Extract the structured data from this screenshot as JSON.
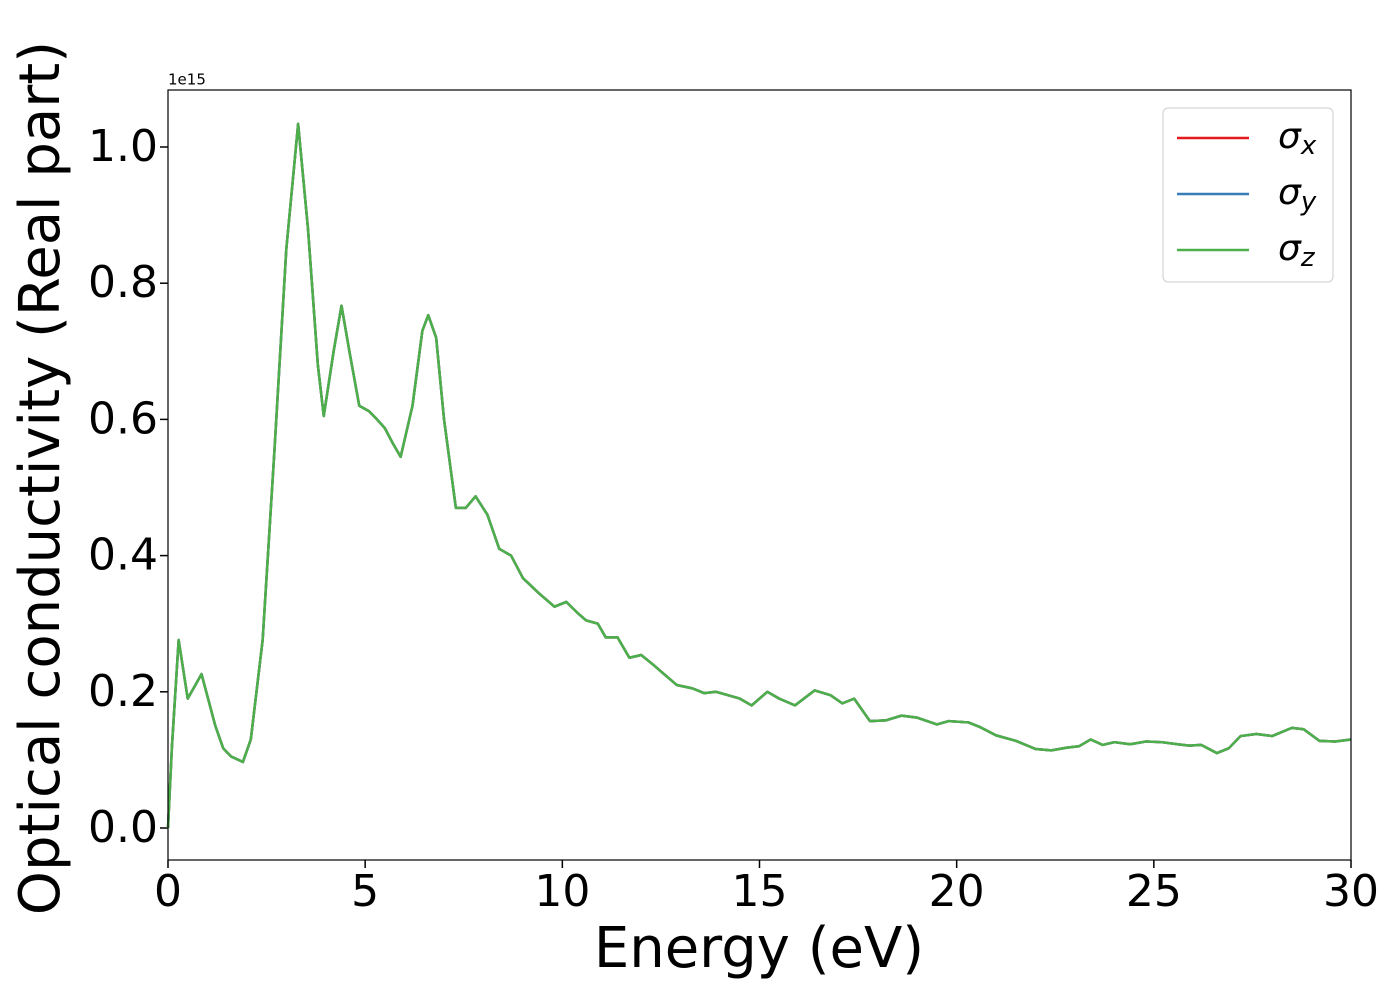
{
  "chart_data": {
    "type": "line",
    "xlabel": "Energy (eV)",
    "ylabel": "Optical conductivity (Real part)",
    "y_offset_label": "1e15",
    "xlim": [
      0,
      30
    ],
    "xticks": [
      0,
      5,
      10,
      15,
      20,
      25,
      30
    ],
    "ylim": [
      -0.047,
      1.0837
    ],
    "yticks": [
      {
        "value": 0,
        "label": "0.0"
      },
      0.2,
      0.4,
      0.6,
      0.8,
      {
        "value": 1,
        "label": "1.0"
      }
    ],
    "legend": "upper right",
    "x": [
      0,
      0.1,
      0.27,
      0.5,
      0.85,
      1.2,
      1.4,
      1.6,
      1.9,
      2.1,
      2.4,
      2.7,
      3.0,
      3.3,
      3.55,
      3.8,
      3.95,
      4.2,
      4.4,
      4.6,
      4.85,
      5.1,
      5.3,
      5.5,
      5.7,
      5.9,
      6.2,
      6.45,
      6.6,
      6.8,
      7.0,
      7.3,
      7.55,
      7.8,
      8.1,
      8.4,
      8.7,
      9.0,
      9.4,
      9.8,
      10.1,
      10.4,
      10.6,
      10.9,
      11.1,
      11.4,
      11.7,
      12.0,
      12.3,
      12.6,
      12.9,
      13.3,
      13.6,
      13.9,
      14.2,
      14.5,
      14.8,
      15.2,
      15.5,
      15.9,
      16.4,
      16.8,
      17.1,
      17.4,
      17.8,
      18.2,
      18.6,
      19.0,
      19.5,
      19.8,
      20.3,
      20.6,
      21.0,
      21.5,
      22.0,
      22.4,
      22.8,
      23.1,
      23.4,
      23.7,
      24.0,
      24.4,
      24.8,
      25.2,
      25.6,
      25.9,
      26.2,
      26.6,
      26.9,
      27.2,
      27.6,
      28.0,
      28.5,
      28.8,
      29.2,
      29.6,
      30.0
    ],
    "series": [
      {
        "name": "σx",
        "color": "#e41a1c",
        "values": [
          0,
          0.12,
          0.276,
          0.19,
          0.226,
          0.15,
          0.117,
          0.105,
          0.097,
          0.13,
          0.276,
          0.555,
          0.85,
          1.034,
          0.88,
          0.68,
          0.605,
          0.7,
          0.767,
          0.7,
          0.62,
          0.612,
          0.6,
          0.587,
          0.565,
          0.545,
          0.62,
          0.73,
          0.753,
          0.72,
          0.6,
          0.47,
          0.47,
          0.487,
          0.46,
          0.41,
          0.4,
          0.367,
          0.345,
          0.325,
          0.332,
          0.315,
          0.305,
          0.3,
          0.28,
          0.28,
          0.25,
          0.254,
          0.24,
          0.225,
          0.21,
          0.205,
          0.198,
          0.2,
          0.195,
          0.19,
          0.18,
          0.2,
          0.19,
          0.18,
          0.202,
          0.195,
          0.183,
          0.19,
          0.157,
          0.158,
          0.165,
          0.162,
          0.152,
          0.157,
          0.155,
          0.148,
          0.136,
          0.128,
          0.116,
          0.114,
          0.118,
          0.12,
          0.13,
          0.122,
          0.126,
          0.123,
          0.127,
          0.126,
          0.123,
          0.121,
          0.122,
          0.11,
          0.117,
          0.135,
          0.138,
          0.135,
          0.147,
          0.145,
          0.128,
          0.127,
          0.13
        ]
      },
      {
        "name": "σy",
        "color": "#377eb8",
        "values": [
          0,
          0.12,
          0.276,
          0.19,
          0.226,
          0.15,
          0.117,
          0.105,
          0.097,
          0.13,
          0.276,
          0.555,
          0.85,
          1.034,
          0.88,
          0.68,
          0.605,
          0.7,
          0.767,
          0.7,
          0.62,
          0.612,
          0.6,
          0.587,
          0.565,
          0.545,
          0.62,
          0.73,
          0.753,
          0.72,
          0.6,
          0.47,
          0.47,
          0.487,
          0.46,
          0.41,
          0.4,
          0.367,
          0.345,
          0.325,
          0.332,
          0.315,
          0.305,
          0.3,
          0.28,
          0.28,
          0.25,
          0.254,
          0.24,
          0.225,
          0.21,
          0.205,
          0.198,
          0.2,
          0.195,
          0.19,
          0.18,
          0.2,
          0.19,
          0.18,
          0.202,
          0.195,
          0.183,
          0.19,
          0.157,
          0.158,
          0.165,
          0.162,
          0.152,
          0.157,
          0.155,
          0.148,
          0.136,
          0.128,
          0.116,
          0.114,
          0.118,
          0.12,
          0.13,
          0.122,
          0.126,
          0.123,
          0.127,
          0.126,
          0.123,
          0.121,
          0.122,
          0.11,
          0.117,
          0.135,
          0.138,
          0.135,
          0.147,
          0.145,
          0.128,
          0.127,
          0.13
        ]
      },
      {
        "name": "σz",
        "color": "#4daf4a",
        "values": [
          0,
          0.12,
          0.276,
          0.19,
          0.226,
          0.15,
          0.117,
          0.105,
          0.097,
          0.13,
          0.276,
          0.555,
          0.85,
          1.034,
          0.88,
          0.68,
          0.605,
          0.7,
          0.767,
          0.7,
          0.62,
          0.612,
          0.6,
          0.587,
          0.565,
          0.545,
          0.62,
          0.73,
          0.753,
          0.72,
          0.6,
          0.47,
          0.47,
          0.487,
          0.46,
          0.41,
          0.4,
          0.367,
          0.345,
          0.325,
          0.332,
          0.315,
          0.305,
          0.3,
          0.28,
          0.28,
          0.25,
          0.254,
          0.24,
          0.225,
          0.21,
          0.205,
          0.198,
          0.2,
          0.195,
          0.19,
          0.18,
          0.2,
          0.19,
          0.18,
          0.202,
          0.195,
          0.183,
          0.19,
          0.157,
          0.158,
          0.165,
          0.162,
          0.152,
          0.157,
          0.155,
          0.148,
          0.136,
          0.128,
          0.116,
          0.114,
          0.118,
          0.12,
          0.13,
          0.122,
          0.126,
          0.123,
          0.127,
          0.126,
          0.123,
          0.121,
          0.122,
          0.11,
          0.117,
          0.135,
          0.138,
          0.135,
          0.147,
          0.145,
          0.128,
          0.127,
          0.13
        ]
      }
    ]
  }
}
